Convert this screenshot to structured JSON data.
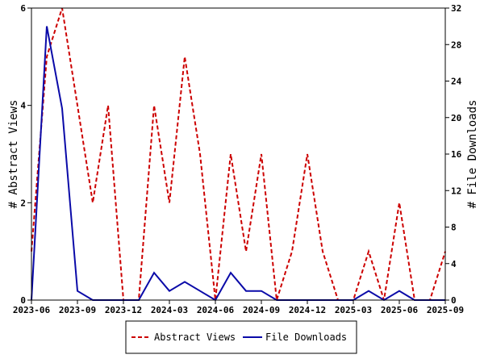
{
  "chart_data": {
    "type": "line",
    "x": [
      "2023-06",
      "2023-07",
      "2023-08",
      "2023-09",
      "2023-10",
      "2023-11",
      "2023-12",
      "2024-01",
      "2024-02",
      "2024-03",
      "2024-04",
      "2024-05",
      "2024-06",
      "2024-07",
      "2024-08",
      "2024-09",
      "2024-10",
      "2024-11",
      "2024-12",
      "2025-01",
      "2025-02",
      "2025-03",
      "2025-04",
      "2025-05",
      "2025-06",
      "2025-07",
      "2025-08",
      "2025-09"
    ],
    "x_tick_labels": [
      "2023-06",
      "2023-09",
      "2023-12",
      "2024-03",
      "2024-06",
      "2024-09",
      "2024-12",
      "2025-03",
      "2025-06",
      "2025-09"
    ],
    "series": [
      {
        "name": "Abstract Views",
        "axis": "left",
        "color": "#cc0000",
        "dash": "dashed",
        "values": [
          1,
          5,
          6,
          4,
          2,
          4,
          0,
          0,
          4,
          2,
          5,
          3,
          0,
          3,
          1,
          3,
          0,
          1,
          3,
          1,
          0,
          0,
          1,
          0,
          2,
          0,
          0,
          1
        ]
      },
      {
        "name": "File Downloads",
        "axis": "right",
        "color": "#0a0aa8",
        "dash": "solid",
        "values": [
          0,
          30,
          21,
          1,
          0,
          0,
          0,
          0,
          3,
          1,
          2,
          1,
          0,
          3,
          1,
          1,
          0,
          0,
          0,
          0,
          0,
          0,
          1,
          0,
          1,
          0,
          0,
          0
        ]
      }
    ],
    "ylabel": "# Abstract Views",
    "y2label": "# File Downloads",
    "ylim": [
      0,
      6
    ],
    "y2lim": [
      0,
      32
    ],
    "yticks": [
      "0",
      "2",
      "4",
      "6"
    ],
    "y2ticks": [
      "0",
      "4",
      "8",
      "12",
      "16",
      "20",
      "24",
      "28",
      "32"
    ],
    "grid": false,
    "legend_position": "bottom"
  }
}
